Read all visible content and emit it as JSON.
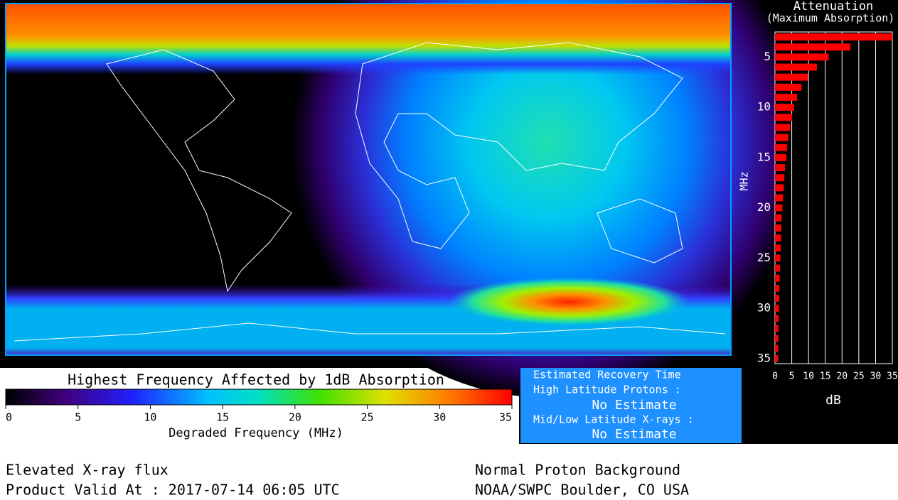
{
  "chart_data": {
    "type": "bar",
    "orientation": "horizontal",
    "title": "Attenuation",
    "subtitle": "(Maximum Absorption)",
    "ylabel": "MHz",
    "xlabel": "dB",
    "y": [
      3,
      4,
      5,
      6,
      7,
      8,
      9,
      10,
      11,
      12,
      13,
      14,
      15,
      16,
      17,
      18,
      19,
      20,
      21,
      22,
      23,
      24,
      25,
      26,
      27,
      28,
      29,
      30,
      31,
      32,
      33,
      34,
      35
    ],
    "values": [
      35,
      22.5,
      16,
      12.5,
      9.8,
      7.9,
      6.6,
      5.7,
      5.1,
      4.5,
      4,
      3.6,
      3.4,
      3,
      2.8,
      2.6,
      2.4,
      2.2,
      2,
      1.9,
      1.8,
      1.7,
      1.6,
      1.5,
      1.4,
      1.3,
      1.25,
      1.2,
      1.1,
      1.05,
      1,
      0.95,
      0.9
    ],
    "color": "#ff0000",
    "xlim": [
      0,
      35
    ],
    "xticks": [
      0,
      5,
      10,
      15,
      20,
      25,
      30,
      35
    ],
    "ylim": [
      2.5,
      35.5
    ],
    "yticks": [
      5,
      10,
      15,
      20,
      25,
      30,
      35
    ],
    "grid": true
  },
  "colorbar": {
    "title": "Highest Frequency Affected by 1dB Absorption",
    "label": "Degraded Frequency (MHz)",
    "lim": [
      0,
      35
    ],
    "ticks": [
      0,
      5,
      10,
      15,
      20,
      25,
      30,
      35
    ]
  },
  "recovery": {
    "title": "Estimated Recovery Time",
    "high_label": "High Latitude Protons :",
    "high_value": "No Estimate",
    "low_label": "Mid/Low Latitude X-rays :",
    "low_value": "No Estimate"
  },
  "footer": {
    "left": [
      "Elevated X-ray flux",
      "Product Valid At : 2017-07-14 06:05 UTC"
    ],
    "right": [
      "Normal Proton Background",
      "NOAA/SWPC Boulder, CO USA"
    ]
  }
}
